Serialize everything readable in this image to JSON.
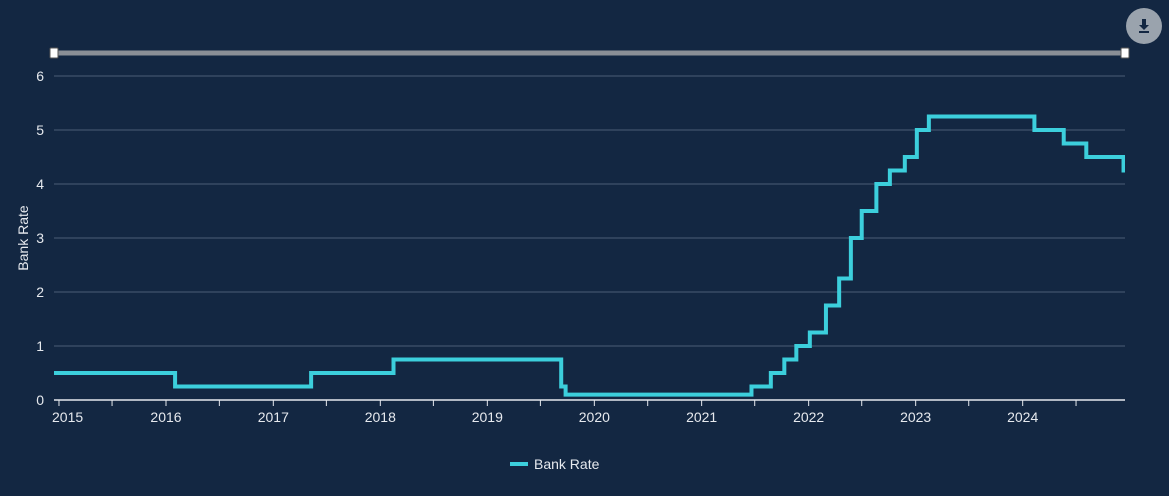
{
  "download_icon": "download-icon",
  "colors": {
    "background": "#132742",
    "series": "#3ccfdc",
    "grid": "#4b5d77",
    "navigator": "#8a8f96",
    "text": "#e6e9ee"
  },
  "chart_data": {
    "type": "line",
    "step": true,
    "ylabel": "Bank Rate",
    "xlabel": "",
    "ylim": [
      0,
      6
    ],
    "yticks": [
      0,
      1,
      2,
      3,
      4,
      5,
      6
    ],
    "xlim": [
      "2014-12-15",
      "2024-12-15"
    ],
    "xticks": [
      "2015",
      "2016",
      "2017",
      "2018",
      "2019",
      "2020",
      "2021",
      "2022",
      "2023",
      "2024"
    ],
    "grid": true,
    "legend_position": "bottom-center",
    "series": [
      {
        "name": "Bank Rate",
        "color": "#3ccfdc",
        "points": [
          {
            "x": "2014-12-15",
            "y": 0.5
          },
          {
            "x": "2016-02-01",
            "y": 0.25
          },
          {
            "x": "2017-05-10",
            "y": 0.5
          },
          {
            "x": "2018-02-15",
            "y": 0.75
          },
          {
            "x": "2019-09-10",
            "y": 0.25
          },
          {
            "x": "2019-09-25",
            "y": 0.1
          },
          {
            "x": "2021-06-20",
            "y": 0.25
          },
          {
            "x": "2021-08-25",
            "y": 0.5
          },
          {
            "x": "2021-10-10",
            "y": 0.75
          },
          {
            "x": "2021-11-20",
            "y": 1.0
          },
          {
            "x": "2022-01-05",
            "y": 1.25
          },
          {
            "x": "2022-03-01",
            "y": 1.75
          },
          {
            "x": "2022-04-15",
            "y": 2.25
          },
          {
            "x": "2022-05-25",
            "y": 3.0
          },
          {
            "x": "2022-07-01",
            "y": 3.5
          },
          {
            "x": "2022-08-20",
            "y": 4.0
          },
          {
            "x": "2022-10-05",
            "y": 4.25
          },
          {
            "x": "2022-11-25",
            "y": 4.5
          },
          {
            "x": "2023-01-05",
            "y": 5.0
          },
          {
            "x": "2023-02-15",
            "y": 5.25
          },
          {
            "x": "2024-02-10",
            "y": 5.0
          },
          {
            "x": "2024-05-20",
            "y": 4.75
          },
          {
            "x": "2024-08-05",
            "y": 4.5
          },
          {
            "x": "2024-12-10",
            "y": 4.25
          }
        ]
      }
    ]
  }
}
